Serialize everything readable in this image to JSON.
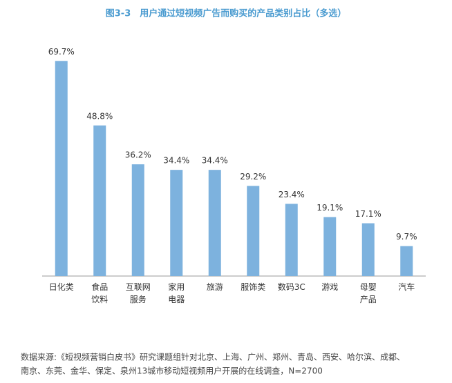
{
  "chart_data": {
    "type": "bar",
    "title": "图3-3　用户通过短视频广告而购买的产品类别占比（多选）",
    "categories": [
      "日化类",
      "食品\n饮料",
      "互联网\n服务",
      "家用\n电器",
      "旅游",
      "服饰类",
      "数码3C",
      "游戏",
      "母婴\n产品",
      "汽车"
    ],
    "values": [
      69.7,
      48.8,
      36.2,
      34.4,
      34.4,
      29.2,
      23.4,
      19.1,
      17.1,
      9.7
    ],
    "value_labels": [
      "69.7%",
      "48.8%",
      "36.2%",
      "34.4%",
      "34.4%",
      "29.2%",
      "23.4%",
      "19.1%",
      "17.1%",
      "9.7%"
    ],
    "color": "#7db2de",
    "ylim": [
      0,
      72
    ],
    "source": [
      "数据来源:《短视频营销白皮书》研究课题组针对北京、上海、广州、郑州、青岛、西安、哈尔滨、成都、",
      "南京、东莞、金华、保定、泉州13城市移动短视频用户开展的在线调查，N=2700"
    ]
  }
}
